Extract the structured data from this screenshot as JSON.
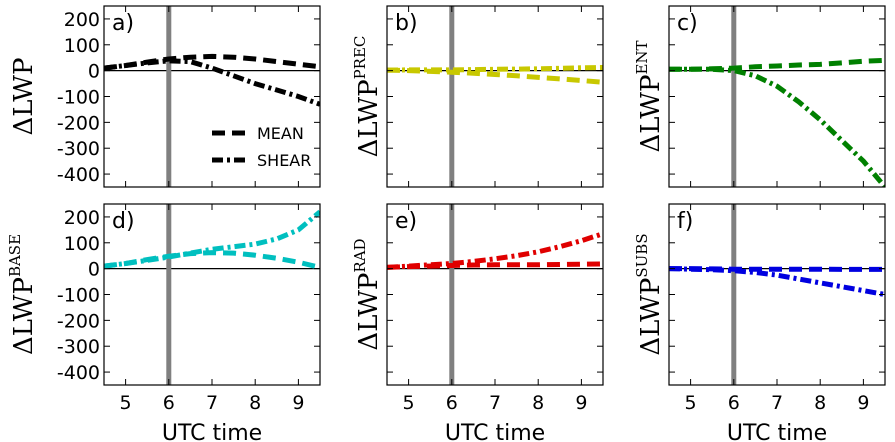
{
  "chart_data": [
    {
      "type": "line",
      "panel_label": "a)",
      "ylabel_main": "ΔLWP",
      "ylabel_sup": "",
      "xlabel": "",
      "x_ticks": [
        5,
        6,
        7,
        8,
        9
      ],
      "y_ticks": [
        200,
        100,
        0,
        -100,
        -200,
        -300,
        -400
      ],
      "xlim": [
        4.5,
        9.5
      ],
      "ylim": [
        -450,
        250
      ],
      "vline_x": 6,
      "zero_line": true,
      "color": "#000000",
      "x": [
        4.5,
        5.0,
        5.5,
        6.0,
        6.5,
        7.0,
        7.5,
        8.0,
        8.5,
        9.0,
        9.5
      ],
      "series": [
        {
          "name": "MEAN",
          "style": "dashed",
          "values": [
            10,
            20,
            33,
            45,
            52,
            55,
            52,
            45,
            35,
            25,
            15
          ]
        },
        {
          "name": "SHEAR",
          "style": "dashdot",
          "values": [
            10,
            20,
            30,
            38,
            35,
            10,
            -20,
            -50,
            -75,
            -100,
            -130
          ]
        }
      ],
      "legend": {
        "placement": "lower-right",
        "entries": [
          {
            "label": "MEAN",
            "style": "dashed"
          },
          {
            "label": "SHEAR",
            "style": "dashdot"
          }
        ]
      }
    },
    {
      "type": "line",
      "panel_label": "b)",
      "ylabel_main": "ΔLWP",
      "ylabel_sup": "PREC",
      "xlabel": "",
      "x_ticks": [
        5,
        6,
        7,
        8,
        9
      ],
      "y_ticks": [],
      "xlim": [
        4.5,
        9.5
      ],
      "ylim": [
        -450,
        250
      ],
      "vline_x": 6,
      "zero_line": true,
      "color": "#c8c800",
      "x": [
        4.5,
        5.0,
        5.5,
        6.0,
        6.5,
        7.0,
        7.5,
        8.0,
        8.5,
        9.0,
        9.5
      ],
      "series": [
        {
          "style": "dashed",
          "values": [
            2,
            0,
            -3,
            -6,
            -10,
            -15,
            -20,
            -26,
            -32,
            -38,
            -45
          ]
        },
        {
          "style": "dashdot",
          "values": [
            2,
            3,
            3,
            3,
            4,
            5,
            6,
            7,
            9,
            11,
            12
          ]
        }
      ]
    },
    {
      "type": "line",
      "panel_label": "c)",
      "ylabel_main": "ΔLWP",
      "ylabel_sup": "ENT",
      "xlabel": "",
      "x_ticks": [
        5,
        6,
        7,
        8,
        9
      ],
      "y_ticks": [],
      "xlim": [
        4.5,
        9.5
      ],
      "ylim": [
        -450,
        250
      ],
      "vline_x": 6,
      "zero_line": true,
      "color": "#008000",
      "x": [
        4.5,
        5.0,
        5.5,
        6.0,
        6.5,
        7.0,
        7.5,
        8.0,
        8.5,
        9.0,
        9.5
      ],
      "series": [
        {
          "style": "dashed",
          "values": [
            5,
            5,
            7,
            10,
            15,
            18,
            22,
            24,
            30,
            36,
            40
          ]
        },
        {
          "style": "dashdot",
          "values": [
            5,
            5,
            5,
            0,
            -20,
            -60,
            -120,
            -190,
            -270,
            -350,
            -450
          ]
        }
      ]
    },
    {
      "type": "line",
      "panel_label": "d)",
      "ylabel_main": "ΔLWP",
      "ylabel_sup": "BASE",
      "xlabel": "UTC time",
      "x_ticks": [
        5,
        6,
        7,
        8,
        9
      ],
      "y_ticks": [
        200,
        100,
        0,
        -100,
        -200,
        -300,
        -400
      ],
      "xlim": [
        4.5,
        9.5
      ],
      "ylim": [
        -450,
        250
      ],
      "vline_x": 6,
      "zero_line": true,
      "color": "#00bfbf",
      "x": [
        4.5,
        5.0,
        5.5,
        6.0,
        6.5,
        7.0,
        7.5,
        8.0,
        8.5,
        9.0,
        9.5
      ],
      "series": [
        {
          "style": "dashed",
          "values": [
            10,
            20,
            35,
            48,
            58,
            62,
            60,
            52,
            40,
            25,
            5
          ]
        },
        {
          "style": "dashdot",
          "values": [
            10,
            20,
            32,
            45,
            60,
            75,
            85,
            95,
            115,
            150,
            220
          ]
        }
      ]
    },
    {
      "type": "line",
      "panel_label": "e)",
      "ylabel_main": "ΔLWP",
      "ylabel_sup": "RAD",
      "xlabel": "UTC time",
      "x_ticks": [
        5,
        6,
        7,
        8,
        9
      ],
      "y_ticks": [],
      "xlim": [
        4.5,
        9.5
      ],
      "ylim": [
        -450,
        250
      ],
      "vline_x": 6,
      "zero_line": true,
      "color": "#e00000",
      "x": [
        4.5,
        5.0,
        5.5,
        6.0,
        6.5,
        7.0,
        7.5,
        8.0,
        8.5,
        9.0,
        9.5
      ],
      "series": [
        {
          "style": "dashed",
          "values": [
            5,
            8,
            10,
            12,
            14,
            15,
            15,
            15,
            16,
            17,
            18
          ]
        },
        {
          "style": "dashdot",
          "values": [
            5,
            10,
            15,
            20,
            28,
            38,
            50,
            65,
            85,
            108,
            135
          ]
        }
      ]
    },
    {
      "type": "line",
      "panel_label": "f)",
      "ylabel_main": "ΔLWP",
      "ylabel_sup": "SUBS",
      "xlabel": "UTC time",
      "x_ticks": [
        5,
        6,
        7,
        8,
        9
      ],
      "y_ticks": [],
      "xlim": [
        4.5,
        9.5
      ],
      "ylim": [
        -450,
        250
      ],
      "vline_x": 6,
      "zero_line": true,
      "color": "#0000e0",
      "x": [
        4.5,
        5.0,
        5.5,
        6.0,
        6.5,
        7.0,
        7.5,
        8.0,
        8.5,
        9.0,
        9.5
      ],
      "series": [
        {
          "style": "dashed",
          "values": [
            0,
            0,
            -1,
            -2,
            -2,
            -2,
            -2,
            -2,
            -3,
            -3,
            -3
          ]
        },
        {
          "style": "dashdot",
          "values": [
            0,
            -2,
            -4,
            -8,
            -15,
            -25,
            -40,
            -55,
            -70,
            -85,
            -100
          ]
        }
      ]
    }
  ]
}
